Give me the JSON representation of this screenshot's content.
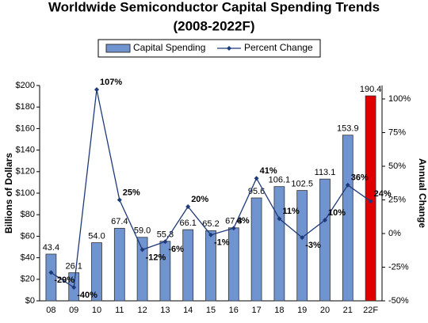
{
  "chart_data": {
    "type": "bar_line",
    "title": "Worldwide Semiconductor Capital Spending Trends",
    "subtitle": "(2008-2022F)",
    "y_label": "Billions of Dollars",
    "y2_label": "Annual Change",
    "categories": [
      "08",
      "09",
      "10",
      "11",
      "12",
      "13",
      "14",
      "15",
      "16",
      "17",
      "18",
      "19",
      "20",
      "21",
      "22F"
    ],
    "series": [
      {
        "name": "Capital Spending",
        "type": "bar",
        "color": "#7094d0",
        "colors": [
          "#7094d0",
          "#7094d0",
          "#7094d0",
          "#7094d0",
          "#7094d0",
          "#7094d0",
          "#7094d0",
          "#7094d0",
          "#7094d0",
          "#7094d0",
          "#7094d0",
          "#7094d0",
          "#7094d0",
          "#7094d0",
          "#e00000"
        ],
        "values": [
          43.4,
          26.1,
          54.0,
          67.4,
          59.0,
          55.3,
          66.1,
          65.2,
          67.8,
          95.6,
          106.1,
          102.5,
          113.1,
          153.9,
          190.4
        ],
        "value_labels": [
          "43.4",
          "26.1",
          "54.0",
          "67.4",
          "59.0",
          "55.3",
          "66.1",
          "65.2",
          "67.8",
          "95.6",
          "106.1",
          "102.5",
          "113.1",
          "153.9",
          "190.4"
        ]
      },
      {
        "name": "Percent Change",
        "type": "line",
        "axis": "y2",
        "color": "#1f3a7a",
        "values": [
          -29,
          -40,
          107,
          25,
          -12,
          -6,
          20,
          -1,
          4,
          41,
          11,
          -3,
          10,
          36,
          24
        ],
        "value_labels": [
          "-29%",
          "-40%",
          "107%",
          "25%",
          "-12%",
          "-6%",
          "20%",
          "-1%",
          "4%",
          "41%",
          "11%",
          "-3%",
          "10%",
          "36%",
          "24%"
        ]
      }
    ],
    "ylim": [
      0,
      200
    ],
    "yticks": [
      {
        "value": 0,
        "label": "$0"
      },
      {
        "value": 20,
        "label": "$20"
      },
      {
        "value": 40,
        "label": "$40"
      },
      {
        "value": 60,
        "label": "$60"
      },
      {
        "value": 80,
        "label": "$80"
      },
      {
        "value": 100,
        "label": "$100"
      },
      {
        "value": 120,
        "label": "$120"
      },
      {
        "value": 140,
        "label": "$140"
      },
      {
        "value": 160,
        "label": "$160"
      },
      {
        "value": 180,
        "label": "$180"
      },
      {
        "value": 200,
        "label": "$200"
      }
    ],
    "y2lim": [
      -50,
      110
    ],
    "y2ticks": [
      {
        "value": -50,
        "label": "-50%"
      },
      {
        "value": -25,
        "label": "-25%"
      },
      {
        "value": 0,
        "label": "0%"
      },
      {
        "value": 25,
        "label": "25%"
      },
      {
        "value": 50,
        "label": "50%"
      },
      {
        "value": 75,
        "label": "75%"
      },
      {
        "value": 100,
        "label": "100%"
      }
    ],
    "legend": "top"
  }
}
